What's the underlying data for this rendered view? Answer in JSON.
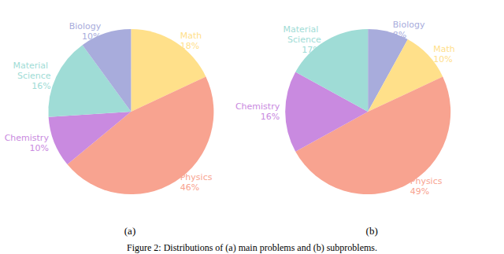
{
  "chart_data": [
    {
      "type": "pie",
      "title": "(a)",
      "categories": [
        "Math",
        "Physics",
        "Chemistry",
        "Material Science",
        "Biology"
      ],
      "values": [
        18,
        46,
        10,
        16,
        10
      ],
      "value_labels": [
        "18%",
        "46%",
        "10%",
        "16%",
        "10%"
      ],
      "colors": [
        "#ffe08a",
        "#f8a390",
        "#c98ae0",
        "#9fdcd6",
        "#a8acdc"
      ],
      "data_labels": true
    },
    {
      "type": "pie",
      "title": "(b)",
      "categories": [
        "Biology",
        "Math",
        "Physics",
        "Chemistry",
        "Material Science"
      ],
      "values": [
        8,
        10,
        49,
        16,
        17
      ],
      "value_labels": [
        "8%",
        "10%",
        "49%",
        "16%",
        "17%"
      ],
      "colors": [
        "#a8acdc",
        "#ffe08a",
        "#f8a390",
        "#c98ae0",
        "#9fdcd6"
      ],
      "data_labels": true
    }
  ],
  "caption": "Figure 2: Distributions of (a) main problems and (b) subproblems."
}
